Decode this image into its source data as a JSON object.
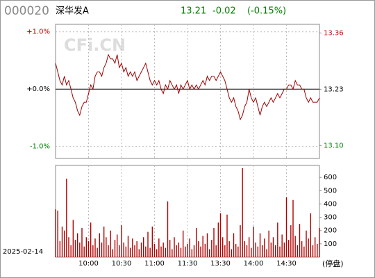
{
  "header": {
    "code": "000020",
    "name": "深华发A",
    "price": "13.21",
    "change": "-0.02",
    "change_pct": "(-0.15%)"
  },
  "watermark": "CFi.CN",
  "date": "2025-02-14",
  "status": "(停盘)",
  "chart_data": [
    {
      "type": "line",
      "color": "#a00000",
      "values": [
        13.29,
        13.27,
        13.25,
        13.24,
        13.26,
        13.24,
        13.25,
        13.23,
        13.21,
        13.2,
        13.18,
        13.17,
        13.19,
        13.2,
        13.2,
        13.22,
        13.24,
        13.23,
        13.26,
        13.27,
        13.27,
        13.26,
        13.28,
        13.29,
        13.31,
        13.3,
        13.3,
        13.29,
        13.31,
        13.28,
        13.29,
        13.27,
        13.28,
        13.26,
        13.27,
        13.26,
        13.27,
        13.25,
        13.26,
        13.27,
        13.28,
        13.29,
        13.27,
        13.25,
        13.24,
        13.25,
        13.24,
        13.25,
        13.23,
        13.22,
        13.24,
        13.23,
        13.25,
        13.24,
        13.23,
        13.24,
        13.22,
        13.24,
        13.23,
        13.24,
        13.25,
        13.23,
        13.24,
        13.23,
        13.24,
        13.23,
        13.24,
        13.25,
        13.24,
        13.26,
        13.25,
        13.26,
        13.26,
        13.25,
        13.26,
        13.27,
        13.26,
        13.25,
        13.23,
        13.21,
        13.2,
        13.21,
        13.19,
        13.18,
        13.16,
        13.17,
        13.19,
        13.2,
        13.23,
        13.21,
        13.2,
        13.21,
        13.19,
        13.17,
        13.19,
        13.2,
        13.19,
        13.2,
        13.21,
        13.2,
        13.21,
        13.22,
        13.21,
        13.22,
        13.23,
        13.23,
        13.24,
        13.24,
        13.23,
        13.25,
        13.24,
        13.24,
        13.23,
        13.23,
        13.21,
        13.2,
        13.21,
        13.2,
        13.2,
        13.2,
        13.21
      ],
      "xlim": [
        0,
        120
      ],
      "ylim": [
        13.07,
        13.38
      ],
      "yticks": [
        13.36,
        13.23,
        {
          "value": 13.1,
          "label": "13.10"
        }
      ],
      "y2lim": [
        -1.21,
        1.13
      ],
      "y2ticks": [
        {
          "value": 1,
          "label": "+1.0%"
        },
        {
          "value": 0,
          "label": "+0.0%"
        },
        {
          "value": -1,
          "label": "-1.0%"
        }
      ]
    },
    {
      "type": "bar",
      "color": "#b00000",
      "values": [
        360,
        350,
        120,
        230,
        200,
        590,
        150,
        90,
        280,
        130,
        180,
        110,
        220,
        80,
        150,
        120,
        260,
        90,
        140,
        70,
        180,
        110,
        230,
        150,
        90,
        200,
        60,
        130,
        170,
        90,
        240,
        110,
        80,
        160,
        70,
        140,
        90,
        120,
        60,
        110,
        150,
        80,
        190,
        70,
        230,
        100,
        60,
        140,
        80,
        110,
        70,
        420,
        130,
        60,
        150,
        90,
        110,
        70,
        200,
        80,
        100,
        140,
        60,
        90,
        220,
        120,
        80,
        160,
        100,
        180,
        60,
        130,
        220,
        90,
        260,
        330,
        150,
        90,
        320,
        120,
        60,
        180,
        100,
        80,
        240,
        670,
        120,
        90,
        150,
        70,
        230,
        110,
        80,
        180,
        90,
        140,
        60,
        200,
        110,
        150,
        90,
        260,
        80,
        170,
        110,
        450,
        130,
        240,
        430,
        160,
        90,
        250,
        120,
        80,
        200,
        140,
        330,
        90,
        150,
        100,
        220
      ],
      "xlim": [
        0,
        120
      ],
      "ylim": [
        0,
        690
      ],
      "xticks": [
        {
          "value": 15,
          "label": "10:00"
        },
        {
          "value": 30,
          "label": "10:30"
        },
        {
          "value": 45,
          "label": "11:00"
        },
        {
          "value": 60,
          "label": "11:30"
        },
        {
          "value": 75,
          "label": "13:30"
        },
        {
          "value": 90,
          "label": "14:00"
        },
        {
          "value": 105,
          "label": "14:30"
        }
      ],
      "yticks": [
        100,
        200,
        300,
        400,
        500,
        600
      ]
    }
  ]
}
